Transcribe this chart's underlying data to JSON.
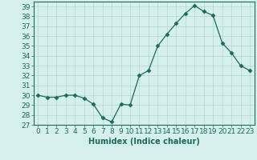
{
  "x": [
    0,
    1,
    2,
    3,
    4,
    5,
    6,
    7,
    8,
    9,
    10,
    11,
    12,
    13,
    14,
    15,
    16,
    17,
    18,
    19,
    20,
    21,
    22,
    23
  ],
  "y": [
    30.0,
    29.8,
    29.8,
    30.0,
    30.0,
    29.7,
    29.1,
    27.7,
    27.3,
    29.1,
    29.0,
    32.0,
    32.5,
    35.0,
    36.2,
    37.3,
    38.3,
    39.1,
    38.5,
    38.1,
    35.3,
    34.3,
    33.0,
    32.5
  ],
  "line_color": "#1a6b5a",
  "marker": "D",
  "marker_size": 2.5,
  "bg_color": "#d5efeb",
  "grid_color": "#b0d8d0",
  "xlabel": "Humidex (Indice chaleur)",
  "ylabel": "",
  "xlim": [
    -0.5,
    23.5
  ],
  "ylim": [
    27,
    39.5
  ],
  "yticks": [
    27,
    28,
    29,
    30,
    31,
    32,
    33,
    34,
    35,
    36,
    37,
    38,
    39
  ],
  "xticks": [
    0,
    1,
    2,
    3,
    4,
    5,
    6,
    7,
    8,
    9,
    10,
    11,
    12,
    13,
    14,
    15,
    16,
    17,
    18,
    19,
    20,
    21,
    22,
    23
  ],
  "xlabel_fontsize": 7,
  "tick_fontsize": 6.5
}
